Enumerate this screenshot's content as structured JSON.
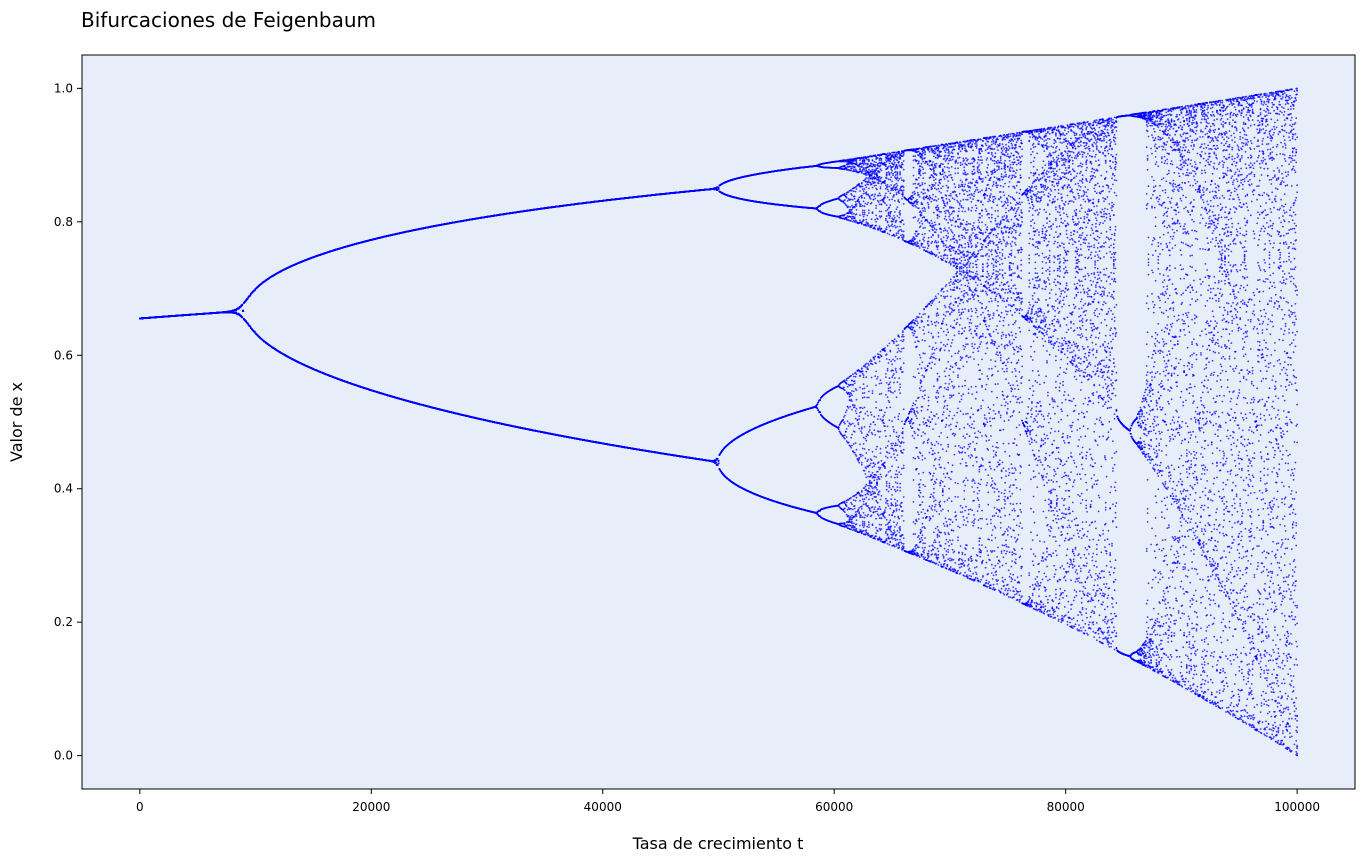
{
  "chart_data": {
    "type": "scatter",
    "title": "Bifurcaciones de Feigenbaum",
    "xlabel": "Tasa de crecimiento t",
    "ylabel": "Valor de x",
    "x_ticks": [
      "0",
      "20000",
      "40000",
      "60000",
      "80000",
      "100000"
    ],
    "y_ticks": [
      "0.0",
      "0.2",
      "0.4",
      "0.6",
      "0.8",
      "1.0"
    ],
    "xlim": [
      -5000,
      105000
    ],
    "ylim": [
      -0.05,
      1.05
    ],
    "grid": false,
    "legend": "none",
    "background_color": "#e8eef9",
    "point_color": "#0000ff",
    "r_range": [
      2.9,
      4.0
    ],
    "t_range": [
      0,
      100000
    ],
    "point_count_per_t": 30
  }
}
